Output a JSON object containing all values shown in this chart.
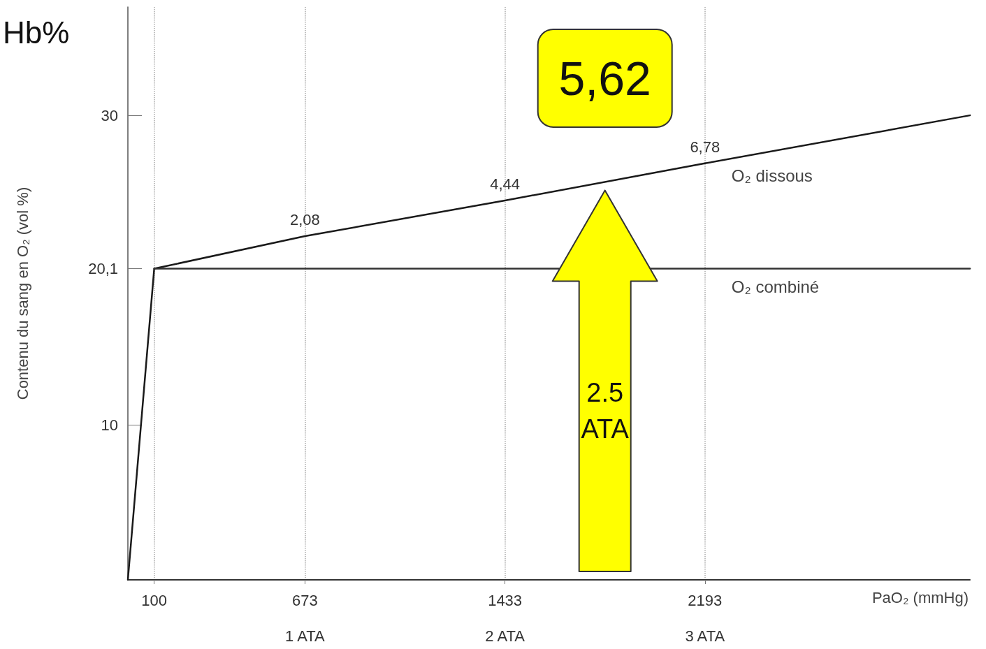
{
  "chart_data": {
    "type": "line",
    "xlabel": "PaO₂ (mmHg)",
    "ylabel": "Contenu du sang en O₂ (vol %)",
    "xlim": [
      0,
      3200
    ],
    "ylim": [
      0,
      37
    ],
    "xticks": [
      100,
      673,
      1433,
      2193
    ],
    "yticks": [
      10,
      {
        "value": 20.1,
        "label": "20,1"
      },
      30
    ],
    "grid": "x",
    "marker": "none",
    "line_style": "solid",
    "legend": false,
    "series": [
      {
        "name": "O₂ dissous",
        "color": "#1a1a1a",
        "x": [
          0,
          100,
          673,
          1433,
          2193,
          3200
        ],
        "values": [
          0,
          20.1,
          22.2,
          24.5,
          26.9,
          30.0
        ]
      },
      {
        "name": "O₂ combiné",
        "color": "#333333",
        "x": [
          100,
          3200
        ],
        "values": [
          20.1,
          20.1
        ]
      }
    ],
    "annotations": [
      "Hb%",
      "5,62",
      "2.5 ATA",
      "1 ATA",
      "2 ATA",
      "3 ATA",
      "2,08",
      "4,44",
      "6,78"
    ]
  }
}
